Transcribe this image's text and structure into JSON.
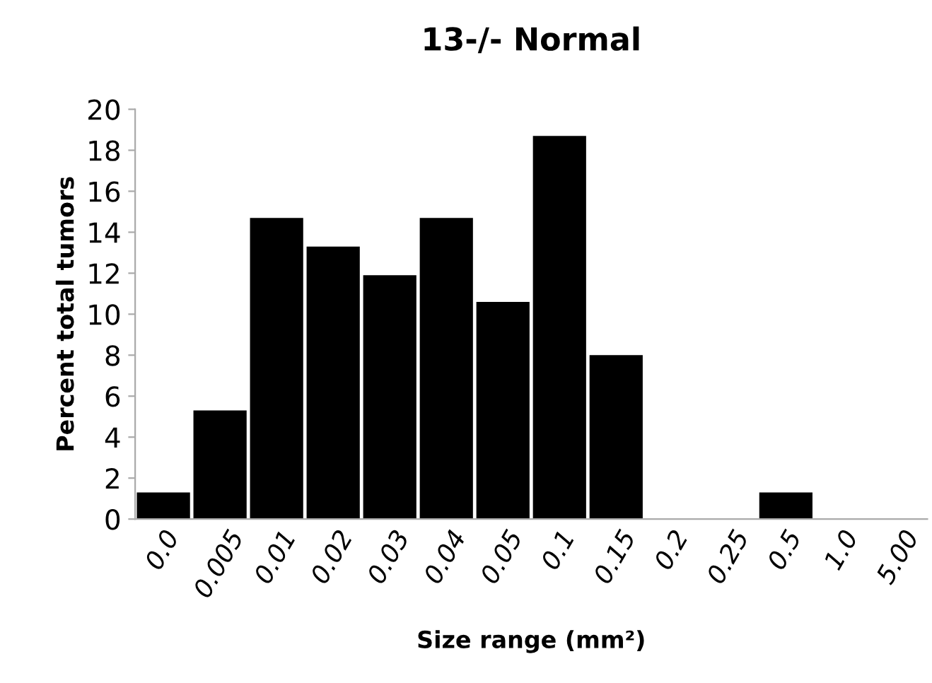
{
  "chart_data": {
    "type": "bar",
    "title": "13-/- Normal",
    "xlabel": "Size range (mm²)",
    "ylabel": "Percent total tumors",
    "categories": [
      "0.0",
      "0.005",
      "0.01",
      "0.02",
      "0.03",
      "0.04",
      "0.05",
      "0.1",
      "0.15",
      "0.2",
      "0.25",
      "0.5",
      "1.0",
      "5.00"
    ],
    "values": [
      1.3,
      5.3,
      14.7,
      13.3,
      11.9,
      14.7,
      10.6,
      18.7,
      8.0,
      0,
      0,
      1.3,
      0,
      0
    ],
    "color": "#000000",
    "ylim": [
      0,
      20
    ],
    "yticks": [
      0,
      2,
      4,
      6,
      8,
      10,
      12,
      14,
      16,
      18,
      20
    ],
    "grid": false,
    "legend": false
  }
}
